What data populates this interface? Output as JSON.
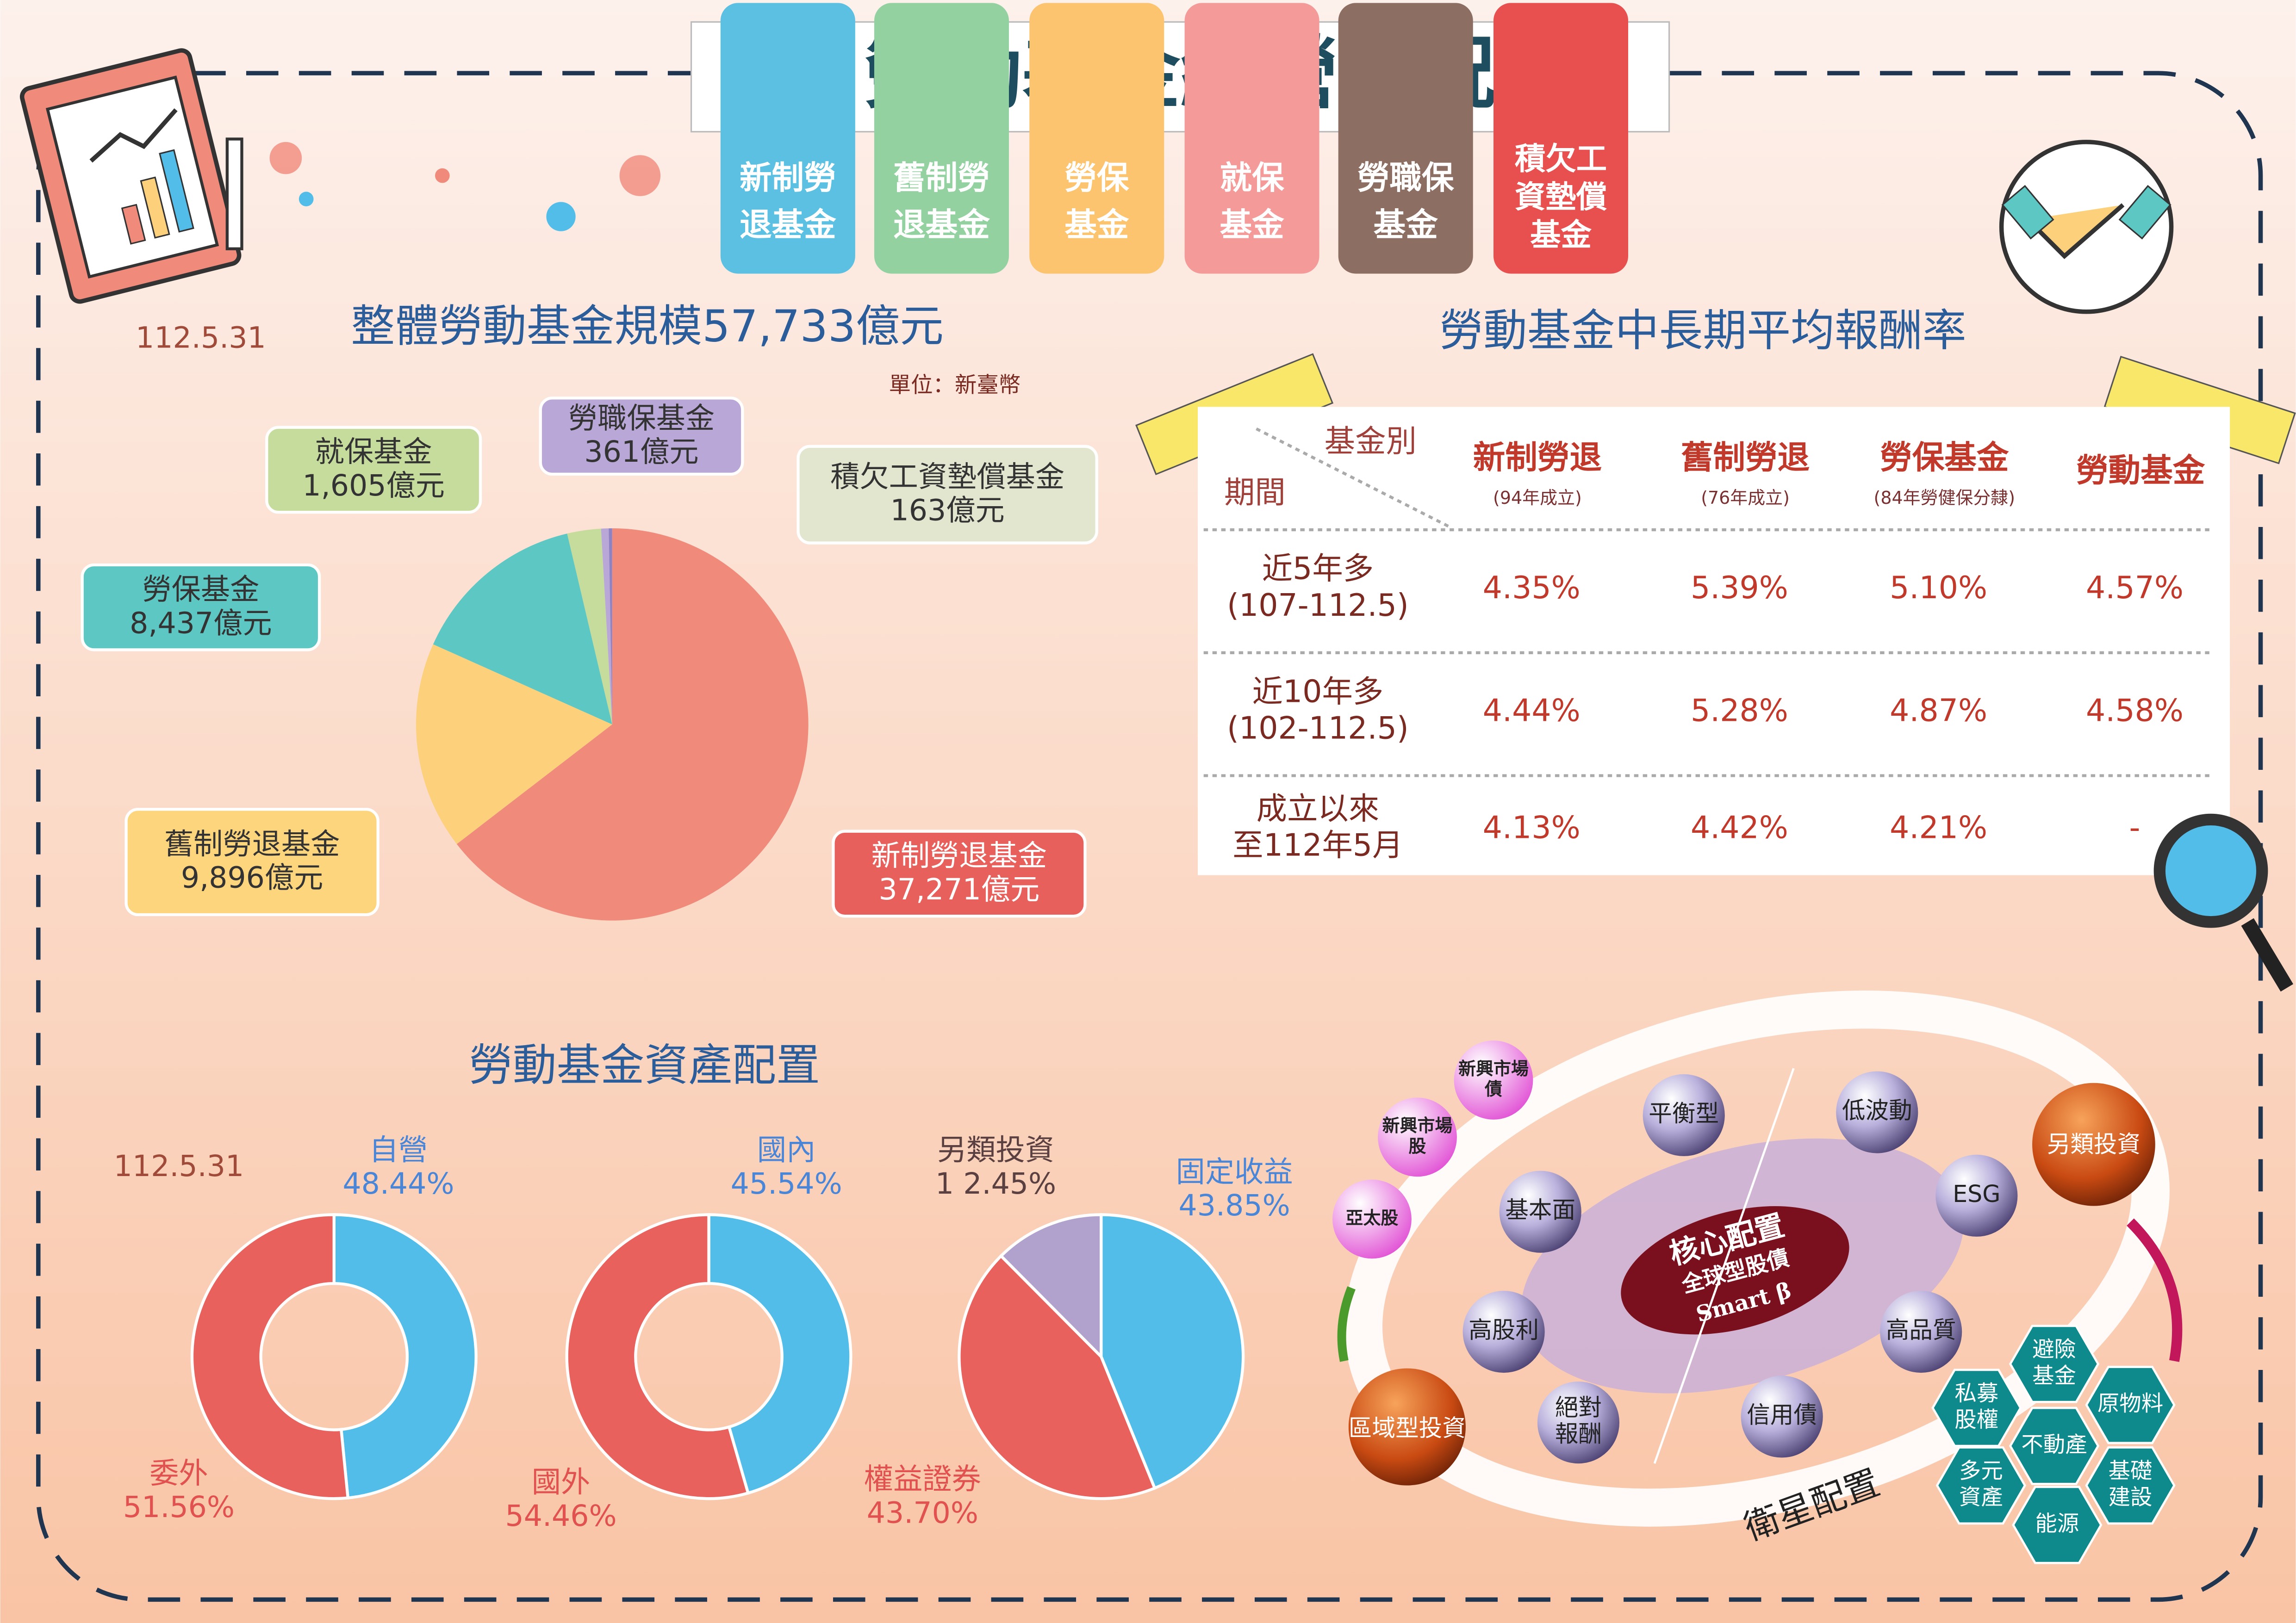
{
  "title": "勞動基金經營概況",
  "tabs": [
    [
      "新制勞",
      "退基金"
    ],
    [
      "舊制勞",
      "退基金"
    ],
    [
      "勞保",
      "基金"
    ],
    [
      "就保",
      "基金"
    ],
    [
      "勞職保",
      "基金"
    ],
    [
      "積欠工",
      "資墊償",
      "基金"
    ]
  ],
  "chart_data": [
    {
      "type": "pie",
      "date": "112.5.31",
      "title": "整體勞動基金規模57,733億元",
      "unit": "單位：新臺幣",
      "categories": [
        "新制勞退基金",
        "舊制勞退基金",
        "勞保基金",
        "就保基金",
        "勞職保基金",
        "積欠工資墊償基金"
      ],
      "values": [
        37271,
        9896,
        8437,
        1605,
        361,
        163
      ],
      "value_labels": [
        "37,271億元",
        "9,896億元",
        "8,437億元",
        "1,605億元",
        "361億元",
        "163億元"
      ],
      "colors": [
        "#f08a7b",
        "#fdd07c",
        "#5cc7c3",
        "#c6dc9d",
        "#b9a8d7",
        "#8e82c2"
      ]
    },
    {
      "type": "donut",
      "title": "勞動基金資產配置",
      "date": "112.5.31",
      "categories": [
        "自營",
        "委外"
      ],
      "values": [
        48.44,
        51.56
      ],
      "value_labels": [
        "48.44%",
        "51.56%"
      ],
      "colors": [
        "#52bde9",
        "#e8615d"
      ]
    },
    {
      "type": "donut",
      "categories": [
        "國內",
        "國外"
      ],
      "values": [
        45.54,
        54.46
      ],
      "value_labels": [
        "45.54%",
        "54.46%"
      ],
      "colors": [
        "#52bde9",
        "#e8615d"
      ]
    },
    {
      "type": "pie",
      "categories": [
        "固定收益",
        "權益證券",
        "另類投資"
      ],
      "values": [
        43.85,
        43.7,
        12.45
      ],
      "value_labels": [
        "43.85%",
        "43.70%",
        "1 2.45%"
      ],
      "colors": [
        "#52bde9",
        "#e8615d",
        "#b1a2cd"
      ]
    }
  ],
  "table": {
    "title": "勞動基金中長期平均報酬率",
    "corner_col": "基金別",
    "corner_row": "期間",
    "columns": [
      {
        "name": "新制勞退",
        "note": "(94年成立)"
      },
      {
        "name": "舊制勞退",
        "note": "(76年成立)"
      },
      {
        "name": "勞保基金",
        "note": "(84年勞健保分隸)"
      },
      {
        "name": "勞動基金"
      }
    ],
    "rows": [
      {
        "period": [
          "近5年多",
          "(107-112.5)"
        ],
        "values": [
          "4.35%",
          "5.39%",
          "5.10%",
          "4.57%"
        ]
      },
      {
        "period": [
          "近10年多",
          "(102-112.5)"
        ],
        "values": [
          "4.44%",
          "5.28%",
          "4.87%",
          "4.58%"
        ]
      },
      {
        "period": [
          "成立以來",
          "至112年5月"
        ],
        "values": [
          "4.13%",
          "4.42%",
          "4.21%",
          "-"
        ]
      }
    ]
  },
  "diagram": {
    "core": [
      "核心配置",
      "全球型股債",
      "Smart β"
    ],
    "core_nodes": [
      [
        "平衡型"
      ],
      [
        "低波動"
      ],
      [
        "ESG"
      ],
      [
        "高品質"
      ],
      [
        "信用債"
      ],
      [
        "絕對",
        "報酬"
      ],
      [
        "高股利"
      ],
      [
        "基本面"
      ]
    ],
    "satellite": "衛星配置",
    "regional": "區域型投資",
    "regional_nodes": [
      [
        "亞太股"
      ],
      [
        "新興市場",
        "股"
      ],
      [
        "新興市場",
        "債"
      ]
    ],
    "alternative": "另類投資",
    "alternative_nodes": [
      [
        "避險",
        "基金"
      ],
      [
        "私募",
        "股權"
      ],
      [
        "原物料"
      ],
      [
        "不動產"
      ],
      [
        "多元",
        "資產"
      ],
      [
        "基礎",
        "建設"
      ],
      [
        "能源"
      ]
    ]
  }
}
